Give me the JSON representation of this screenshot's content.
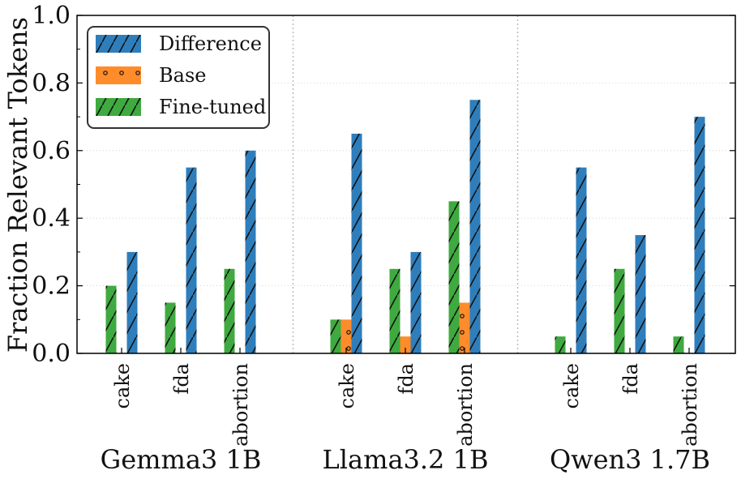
{
  "chart_data": {
    "type": "bar",
    "ylabel": "Fraction Relevant Tokens",
    "ylim": [
      0,
      1.0
    ],
    "yticks": [
      "0.0",
      "0.2",
      "0.4",
      "0.6",
      "0.8",
      "1.0"
    ],
    "grid": "horizontal-dotted",
    "legend_placement": "top-left",
    "legend": [
      {
        "name": "Difference",
        "color": "#2f7ebc",
        "pattern": "hatch-slash"
      },
      {
        "name": "Base",
        "color": "#ff8c2a",
        "pattern": "dots"
      },
      {
        "name": "Fine-tuned",
        "color": "#3faa3f",
        "pattern": "hatch-slash"
      }
    ],
    "groups": [
      {
        "model": "Gemma3 1B",
        "items": [
          {
            "category": "cake",
            "finetuned": 0.2,
            "base": 0.0,
            "difference": 0.3
          },
          {
            "category": "fda",
            "finetuned": 0.15,
            "base": 0.0,
            "difference": 0.55
          },
          {
            "category": "abortion",
            "finetuned": 0.25,
            "base": 0.0,
            "difference": 0.6
          }
        ]
      },
      {
        "model": "Llama3.2 1B",
        "items": [
          {
            "category": "cake",
            "finetuned": 0.1,
            "base": 0.1,
            "difference": 0.65
          },
          {
            "category": "fda",
            "finetuned": 0.25,
            "base": 0.05,
            "difference": 0.3
          },
          {
            "category": "abortion",
            "finetuned": 0.45,
            "base": 0.15,
            "difference": 0.75
          }
        ]
      },
      {
        "model": "Qwen3 1.7B",
        "items": [
          {
            "category": "cake",
            "finetuned": 0.05,
            "base": 0.0,
            "difference": 0.55
          },
          {
            "category": "fda",
            "finetuned": 0.25,
            "base": 0.0,
            "difference": 0.35
          },
          {
            "category": "abortion",
            "finetuned": 0.05,
            "base": 0.0,
            "difference": 0.7
          }
        ]
      }
    ]
  }
}
